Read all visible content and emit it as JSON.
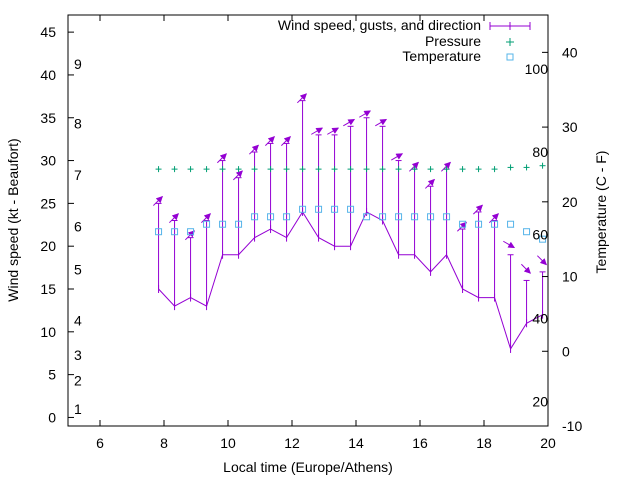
{
  "chart_data": {
    "type": "line",
    "xlabel": "Local time (Europe/Athens)",
    "ylabel": "Wind speed (kt - Beaufort)",
    "y2label": "Temperature (C - F)",
    "xlim": [
      5,
      20
    ],
    "ylim": [
      -1,
      47
    ],
    "y2lim": [
      -10,
      45
    ],
    "xticks": [
      6,
      8,
      10,
      12,
      14,
      16,
      18,
      20
    ],
    "yticks": [
      0,
      5,
      10,
      15,
      20,
      25,
      30,
      35,
      40,
      45
    ],
    "y2ticks": [
      -10,
      0,
      10,
      20,
      30,
      40
    ],
    "beaufort_labels": [
      {
        "text": "1",
        "y": 1
      },
      {
        "text": "2",
        "y": 4.3
      },
      {
        "text": "3",
        "y": 7.3
      },
      {
        "text": "4",
        "y": 11.3
      },
      {
        "text": "5",
        "y": 17.3
      },
      {
        "text": "6",
        "y": 22.3
      },
      {
        "text": "7",
        "y": 28.3
      },
      {
        "text": "8",
        "y": 34.3
      },
      {
        "text": "9",
        "y": 41.3
      }
    ],
    "fahrenheit_labels": [
      {
        "text": "20",
        "y": -6.7
      },
      {
        "text": "40",
        "y": 4.4
      },
      {
        "text": "60",
        "y": 15.6
      },
      {
        "text": "80",
        "y": 26.7
      },
      {
        "text": "100",
        "y": 37.8
      }
    ],
    "legend": [
      {
        "label": "Wind speed, gusts, and direction",
        "marker": "line"
      },
      {
        "label": "Pressure",
        "marker": "plus"
      },
      {
        "label": "Temperature",
        "marker": "square"
      }
    ],
    "colors": {
      "wind": "#9400d3",
      "pressure": "#009e73",
      "temperature": "#56b4e9"
    },
    "series": [
      {
        "name": "Wind speed, gusts, and direction",
        "x": [
          7.83,
          8.33,
          8.83,
          9.33,
          9.83,
          10.33,
          10.83,
          11.33,
          11.83,
          12.33,
          12.83,
          13.33,
          13.83,
          14.33,
          14.83,
          15.33,
          15.83,
          16.33,
          16.83,
          17.33,
          17.83,
          18.33,
          18.83,
          19.33,
          19.83
        ],
        "speed": [
          15,
          13,
          14,
          13,
          19,
          19,
          21,
          22,
          21,
          24,
          21,
          20,
          20,
          24,
          23,
          19,
          19,
          17,
          19,
          15,
          14,
          14,
          8,
          11,
          12
        ],
        "gust": [
          25,
          23,
          21,
          23,
          30,
          28,
          31,
          32,
          32,
          37,
          33,
          33,
          34,
          35,
          34,
          30,
          29,
          27,
          29,
          22,
          24,
          23,
          19,
          16,
          17
        ],
        "direction": [
          225,
          225,
          225,
          225,
          225,
          225,
          225,
          225,
          225,
          225,
          240,
          240,
          240,
          240,
          240,
          240,
          225,
          225,
          225,
          225,
          225,
          225,
          300,
          315,
          315
        ]
      },
      {
        "name": "Pressure",
        "x": [
          7.83,
          8.33,
          8.83,
          9.33,
          9.83,
          10.33,
          10.83,
          11.33,
          11.83,
          12.33,
          12.83,
          13.33,
          13.83,
          14.33,
          14.83,
          15.33,
          15.83,
          16.33,
          16.83,
          17.33,
          17.83,
          18.33,
          18.83,
          19.33,
          19.83
        ],
        "y": [
          29,
          29,
          29,
          29,
          29,
          29,
          29,
          29,
          29,
          29,
          29,
          29,
          29,
          29,
          29,
          29,
          29,
          29,
          29,
          29,
          29,
          29,
          29.2,
          29.2,
          29.4
        ]
      },
      {
        "name": "Temperature",
        "x": [
          7.83,
          8.33,
          8.83,
          9.33,
          9.83,
          10.33,
          10.83,
          11.33,
          11.83,
          12.33,
          12.83,
          13.33,
          13.83,
          14.33,
          14.83,
          15.33,
          15.83,
          16.33,
          16.83,
          17.33,
          17.83,
          18.33,
          18.83,
          19.33,
          19.83
        ],
        "y": [
          16,
          16,
          16,
          17,
          17,
          17,
          18,
          18,
          18,
          19,
          19,
          19,
          19,
          18,
          18,
          18,
          18,
          18,
          18,
          17,
          17,
          17,
          17,
          16,
          15
        ]
      }
    ]
  }
}
